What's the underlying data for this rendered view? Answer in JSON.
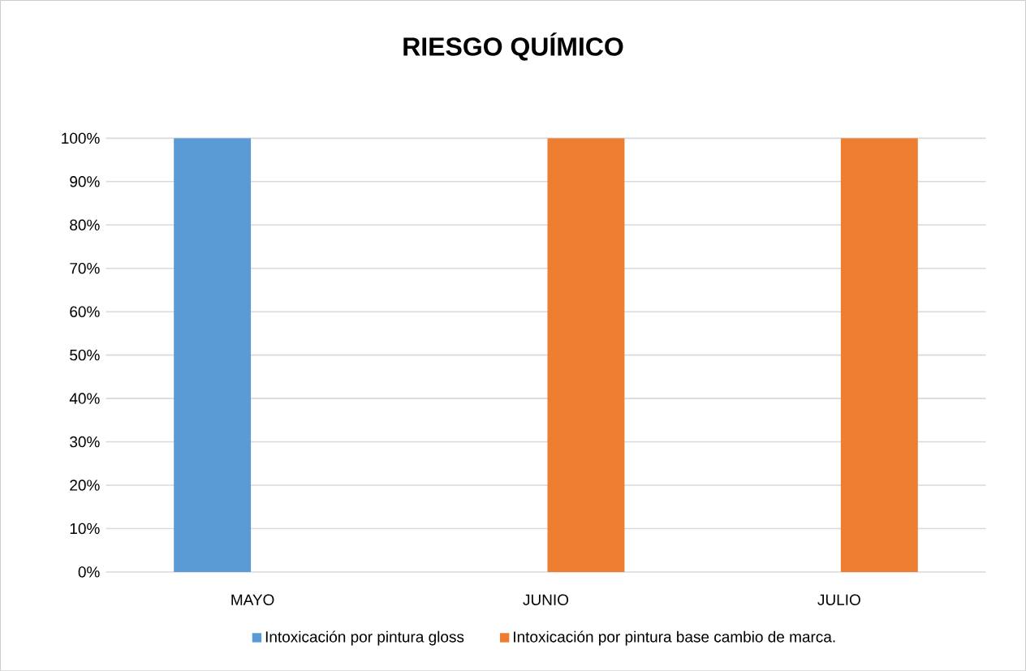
{
  "chart_data": {
    "type": "bar",
    "title": "RIESGO QUÍMICO",
    "categories": [
      "MAYO",
      "JUNIO",
      "JULIO"
    ],
    "series": [
      {
        "name": "Intoxicación por pintura gloss",
        "color": "#5b9bd5",
        "values": [
          100,
          0,
          0
        ]
      },
      {
        "name": "Intoxicación por pintura base cambio de marca.",
        "color": "#ed7d31",
        "values": [
          0,
          100,
          100
        ]
      }
    ],
    "ylim": [
      0,
      100
    ],
    "yticks": [
      {
        "value": 0,
        "label": "0%"
      },
      {
        "value": 10,
        "label": "10%"
      },
      {
        "value": 20,
        "label": "20%"
      },
      {
        "value": 30,
        "label": "30%"
      },
      {
        "value": 40,
        "label": "40%"
      },
      {
        "value": 50,
        "label": "50%"
      },
      {
        "value": 60,
        "label": "60%"
      },
      {
        "value": 70,
        "label": "70%"
      },
      {
        "value": 80,
        "label": "80%"
      },
      {
        "value": 90,
        "label": "90%"
      },
      {
        "value": 100,
        "label": "100%"
      }
    ],
    "grid": "y",
    "legend": "bottom"
  }
}
